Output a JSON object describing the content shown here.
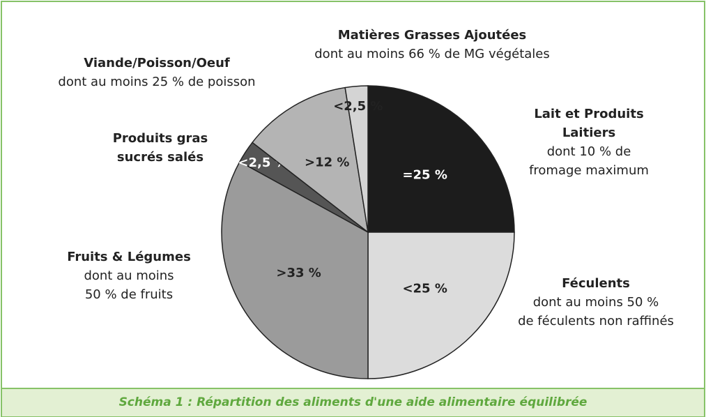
{
  "chart_data": {
    "type": "pie",
    "categories": [
      "Lait et Produits Laitiers",
      "Féculents",
      "Fruits & Légumes",
      "Produits gras sucrés salés",
      "Viande/Poisson/Oeuf",
      "Matières Grasses Ajoutées"
    ],
    "notes": [
      [
        "dont 10 % de",
        "fromage maximum"
      ],
      [
        "dont au moins 50 %",
        "de féculents non raffinés"
      ],
      [
        "dont au moins",
        "50 % de fruits"
      ],
      [],
      [
        "dont au moins 25 % de poisson"
      ],
      [
        "dont au moins 66 % de MG végétales"
      ]
    ],
    "values": [
      25,
      25,
      33,
      2.5,
      12,
      2.5
    ],
    "value_labels": [
      "=25 %",
      "<25 %",
      ">33 %",
      "<2,5 %",
      ">12 %",
      "<2,5 %"
    ],
    "colors": [
      "#1c1c1c",
      "#dcdcdc",
      "#9b9b9b",
      "#555555",
      "#b4b4b4",
      "#d4d4d4"
    ],
    "caption": "Schéma 1 : Répartition des aliments d'une aide alimentaire équilibrée"
  }
}
